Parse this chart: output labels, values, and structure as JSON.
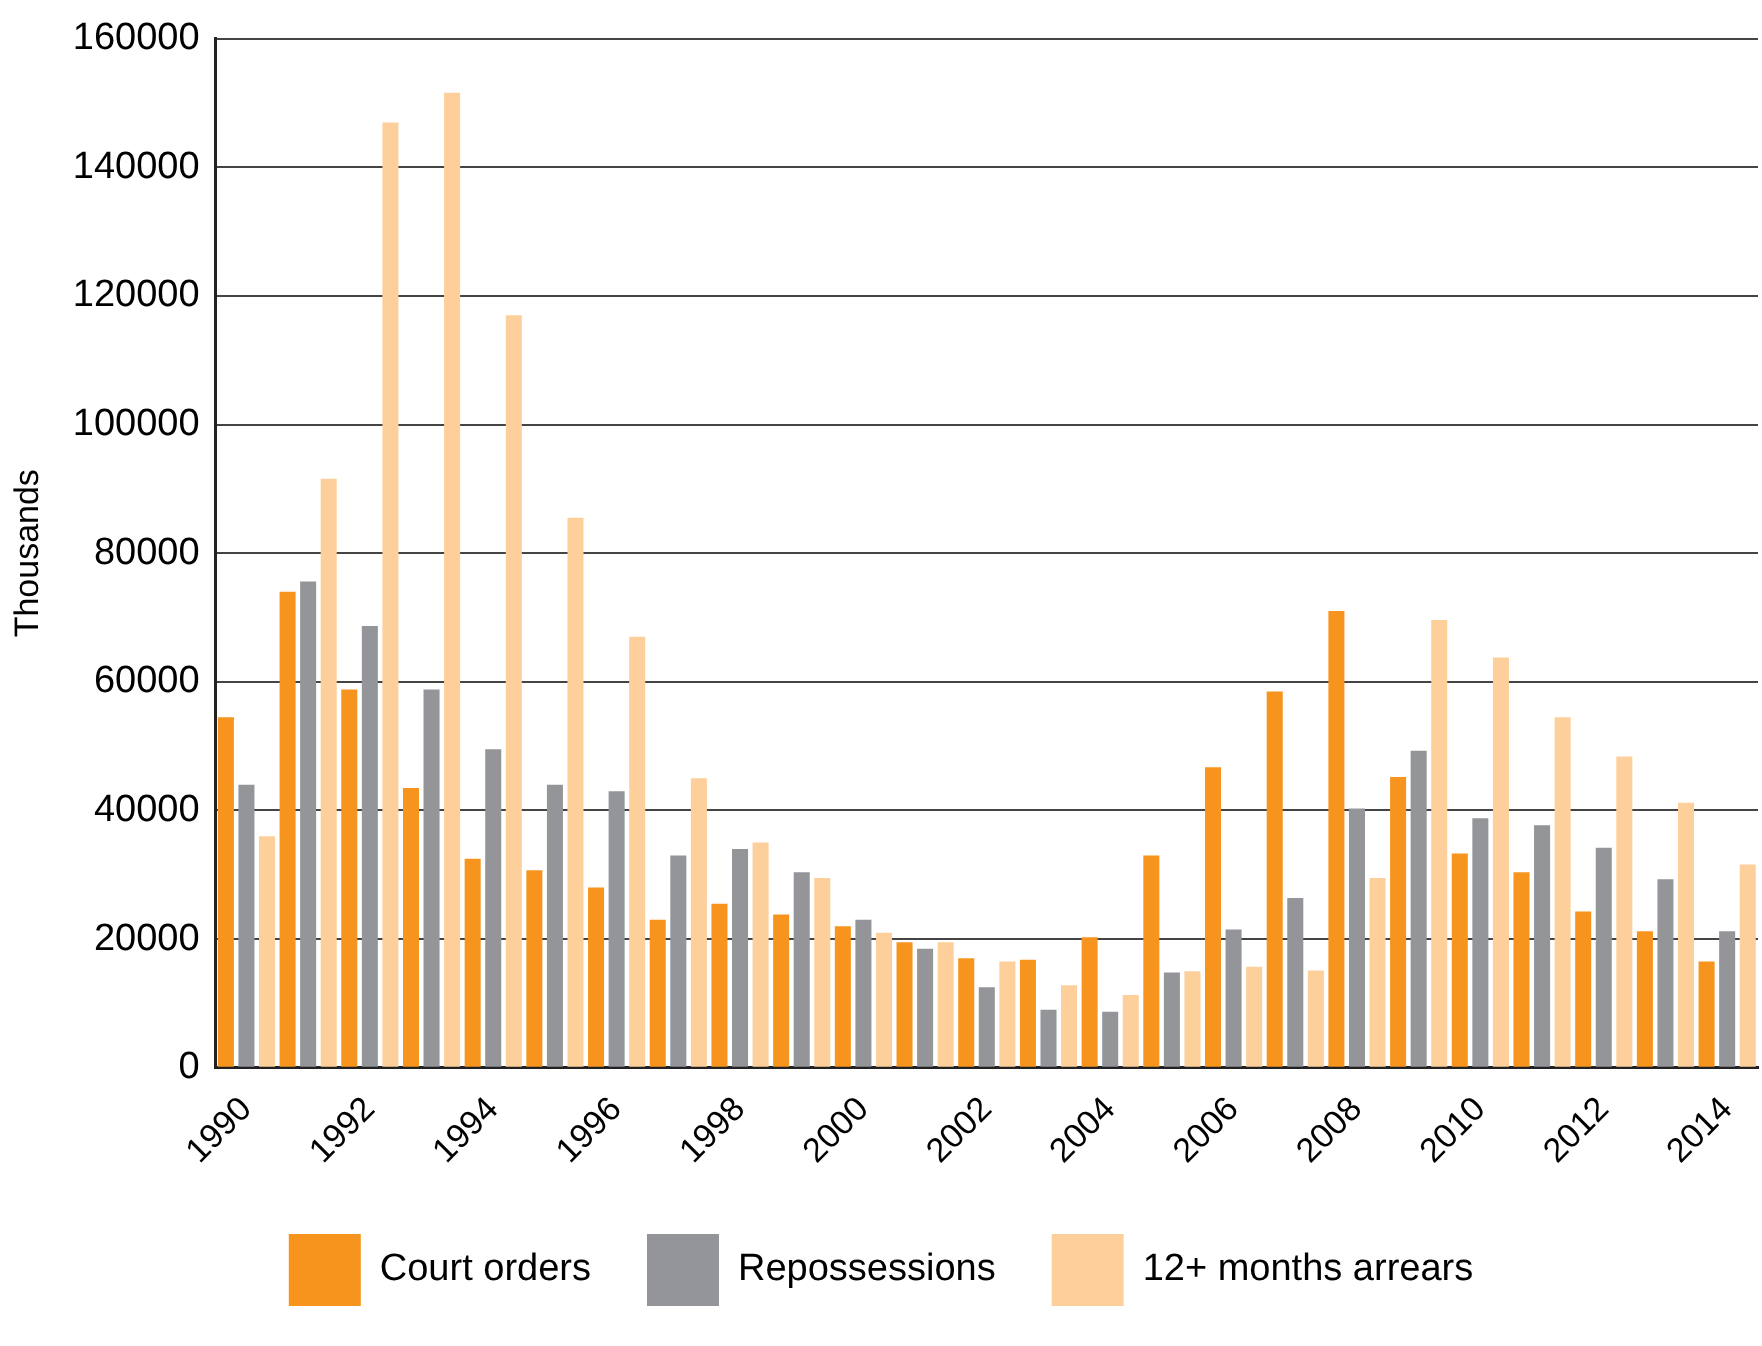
{
  "chart_data": {
    "type": "bar",
    "ylabel": "Thousands",
    "categories": [
      "1990",
      null,
      "1992",
      null,
      "1994",
      null,
      "1996",
      null,
      "1998",
      null,
      "2000",
      null,
      "2002",
      null,
      "2004",
      null,
      "2006",
      null,
      "2008",
      null,
      "2010",
      null,
      "2012",
      null,
      "2014"
    ],
    "series": [
      {
        "name": "Court orders",
        "color": "#f7941d",
        "values": [
          54500,
          74000,
          58800,
          43500,
          32500,
          30700,
          28000,
          23000,
          25500,
          23800,
          22000,
          19500,
          17000,
          16800,
          20300,
          33000,
          46700,
          58500,
          71000,
          45200,
          33300,
          30400,
          24300,
          21200,
          16500
        ]
      },
      {
        "name": "Repossessions",
        "color": "#939598",
        "values": [
          44000,
          75600,
          68700,
          58800,
          49500,
          44000,
          43000,
          33000,
          34000,
          30400,
          23000,
          18500,
          12500,
          9000,
          8700,
          14800,
          21500,
          26400,
          40300,
          49300,
          38800,
          37700,
          34200,
          29300,
          21200
        ]
      },
      {
        "name": "12+ months arrears",
        "color": "#fdd09b",
        "values": [
          36000,
          91600,
          147000,
          151600,
          117000,
          85500,
          67000,
          45000,
          35000,
          29500,
          21000,
          19500,
          16500,
          12800,
          11300,
          15000,
          15700,
          15100,
          29500,
          69600,
          63800,
          54500,
          48400,
          41200,
          31600
        ]
      }
    ],
    "ylim": [
      0,
      160000
    ],
    "yticks": [
      0,
      20000,
      40000,
      60000,
      80000,
      100000,
      120000,
      140000,
      160000
    ],
    "grid": "y",
    "legend": "bottom"
  }
}
